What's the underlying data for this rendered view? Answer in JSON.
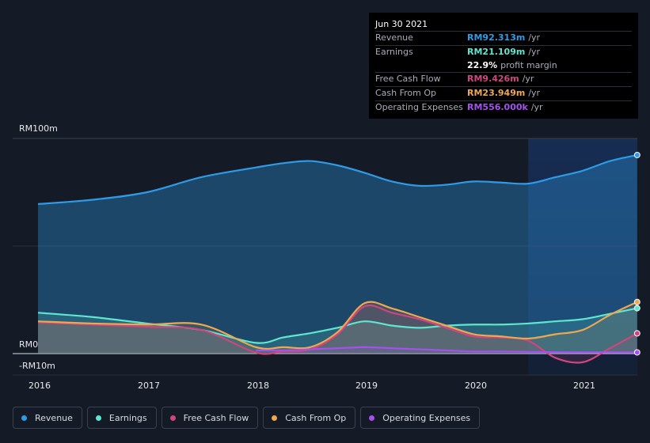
{
  "tooltip": {
    "date": "Jun 30 2021",
    "rows": [
      {
        "label": "Revenue",
        "value": "RM92.313m",
        "unit": "/yr",
        "color": "#2e9be8"
      },
      {
        "label": "Earnings",
        "value": "RM21.109m",
        "unit": "/yr",
        "color": "#5ee6cf"
      },
      {
        "label": "",
        "value": "22.9%",
        "unit": "profit margin",
        "color": "#ffffff"
      },
      {
        "label": "Free Cash Flow",
        "value": "RM9.426m",
        "unit": "/yr",
        "color": "#d0457e"
      },
      {
        "label": "Cash From Op",
        "value": "RM23.949m",
        "unit": "/yr",
        "color": "#f0a850"
      },
      {
        "label": "Operating Expenses",
        "value": "RM556.000k",
        "unit": "/yr",
        "color": "#a551f0"
      }
    ]
  },
  "chart_data": {
    "type": "area",
    "title": "",
    "xlabel": "",
    "ylabel": "",
    "y_tick_labels": [
      "RM100m",
      "RM0",
      "-RM10m"
    ],
    "x_tick_labels": [
      "2016",
      "2017",
      "2018",
      "2019",
      "2020",
      "2021"
    ],
    "ylim": [
      -10,
      100
    ],
    "xlim": [
      2015.76,
      2021.5
    ],
    "highlight_from": 2020.5,
    "series": [
      {
        "name": "Revenue",
        "color": "#2e9be8",
        "x": [
          2016.0,
          2016.5,
          2017.0,
          2017.5,
          2018.0,
          2018.25,
          2018.5,
          2018.75,
          2019.0,
          2019.25,
          2019.5,
          2019.75,
          2020.0,
          2020.25,
          2020.5,
          2020.75,
          2021.0,
          2021.25,
          2021.5
        ],
        "values": [
          69.5,
          71.5,
          75.0,
          82.0,
          86.5,
          88.5,
          89.5,
          87.5,
          84.0,
          80.0,
          78.0,
          78.5,
          80.0,
          79.5,
          79.0,
          82.0,
          85.0,
          89.5,
          92.3
        ]
      },
      {
        "name": "Earnings",
        "color": "#5ee6cf",
        "x": [
          2016.0,
          2016.5,
          2017.0,
          2017.5,
          2018.0,
          2018.25,
          2018.5,
          2018.75,
          2019.0,
          2019.25,
          2019.5,
          2019.75,
          2020.0,
          2020.25,
          2020.5,
          2020.75,
          2021.0,
          2021.25,
          2021.5
        ],
        "values": [
          19.0,
          17.0,
          14.0,
          11.0,
          5.0,
          7.5,
          9.5,
          12.0,
          15.0,
          13.0,
          12.0,
          13.0,
          13.5,
          13.5,
          14.0,
          15.0,
          16.0,
          18.5,
          21.1
        ]
      },
      {
        "name": "Free Cash Flow",
        "color": "#d0457e",
        "x": [
          2016.0,
          2016.5,
          2017.0,
          2017.5,
          2018.0,
          2018.25,
          2018.5,
          2018.75,
          2019.0,
          2019.25,
          2019.5,
          2019.75,
          2020.0,
          2020.25,
          2020.5,
          2020.75,
          2021.0,
          2021.25,
          2021.5
        ],
        "values": [
          14.5,
          13.5,
          12.5,
          11.0,
          0.5,
          1.0,
          2.0,
          9.0,
          22.0,
          19.0,
          16.0,
          12.0,
          8.0,
          7.5,
          6.0,
          -2.0,
          -4.0,
          2.5,
          9.4
        ]
      },
      {
        "name": "Cash From Op",
        "color": "#f0a850",
        "x": [
          2016.0,
          2016.5,
          2017.0,
          2017.5,
          2018.0,
          2018.25,
          2018.5,
          2018.75,
          2019.0,
          2019.25,
          2019.5,
          2019.75,
          2020.0,
          2020.25,
          2020.5,
          2020.75,
          2021.0,
          2021.25,
          2021.5
        ],
        "values": [
          15.0,
          14.0,
          13.5,
          13.5,
          3.0,
          3.0,
          3.0,
          10.0,
          23.5,
          21.0,
          17.0,
          13.0,
          9.0,
          8.0,
          7.0,
          9.0,
          11.0,
          18.0,
          24.0
        ]
      },
      {
        "name": "Operating Expenses",
        "color": "#a551f0",
        "x": [
          2016.0,
          2016.5,
          2017.0,
          2017.5,
          2018.0,
          2018.25,
          2018.5,
          2018.75,
          2019.0,
          2019.25,
          2019.5,
          2019.75,
          2020.0,
          2020.25,
          2020.5,
          2020.75,
          2021.0,
          2021.25,
          2021.5
        ],
        "values": [
          null,
          null,
          null,
          null,
          1.5,
          1.5,
          2.0,
          2.5,
          3.0,
          2.5,
          2.0,
          1.5,
          1.0,
          1.0,
          0.8,
          0.7,
          0.6,
          0.6,
          0.56
        ]
      }
    ]
  },
  "legend": [
    {
      "label": "Revenue",
      "color": "#2e9be8"
    },
    {
      "label": "Earnings",
      "color": "#5ee6cf"
    },
    {
      "label": "Free Cash Flow",
      "color": "#d0457e"
    },
    {
      "label": "Cash From Op",
      "color": "#f0a850"
    },
    {
      "label": "Operating Expenses",
      "color": "#a551f0"
    }
  ]
}
